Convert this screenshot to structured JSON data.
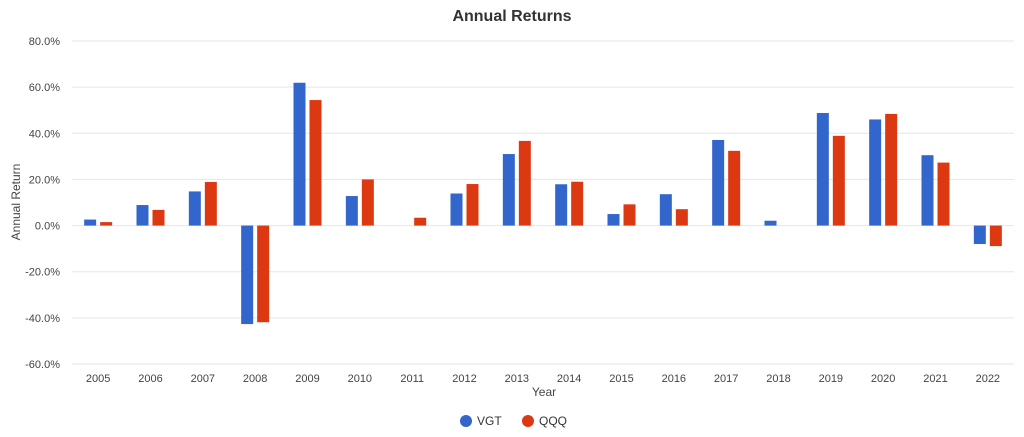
{
  "chart_data": {
    "type": "bar",
    "title": "Annual Returns",
    "xlabel": "Year",
    "ylabel": "Annual Return",
    "categories": [
      "2005",
      "2006",
      "2007",
      "2008",
      "2009",
      "2010",
      "2011",
      "2012",
      "2013",
      "2014",
      "2015",
      "2016",
      "2017",
      "2018",
      "2019",
      "2020",
      "2021",
      "2022"
    ],
    "series": [
      {
        "name": "VGT",
        "color": "#3366cc",
        "values": [
          2.6,
          8.9,
          14.8,
          -42.7,
          61.9,
          12.8,
          0,
          13.9,
          31.0,
          17.9,
          5.0,
          13.6,
          37.1,
          2.1,
          48.8,
          46.0,
          30.5,
          -8.0
        ]
      },
      {
        "name": "QQQ",
        "color": "#dc3912",
        "values": [
          1.5,
          6.8,
          18.9,
          -41.9,
          54.4,
          20.0,
          3.4,
          18.0,
          36.7,
          19.0,
          9.2,
          7.1,
          32.4,
          0,
          38.9,
          48.4,
          27.3,
          -8.9
        ]
      }
    ],
    "ylim": [
      -60,
      80
    ],
    "yticks": [
      -60,
      -40,
      -20,
      0,
      20,
      40,
      60,
      80
    ],
    "ytick_labels": [
      "-60.0%",
      "-40.0%",
      "-20.0%",
      "0.0%",
      "20.0%",
      "40.0%",
      "60.0%",
      "80.0%"
    ],
    "grid": true,
    "legend": "bottom"
  }
}
